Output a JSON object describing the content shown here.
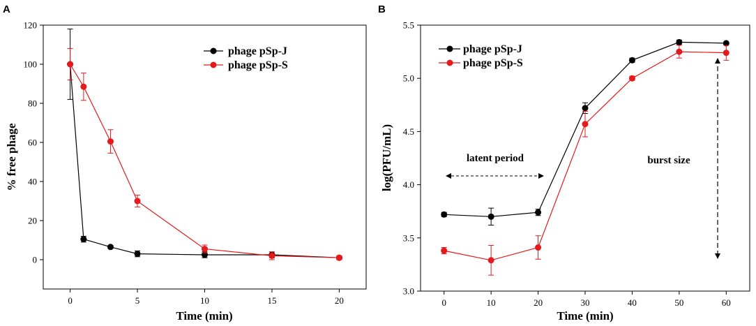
{
  "chart_data": [
    {
      "panel": "A",
      "type": "line",
      "title": "",
      "xlabel": "Time (min)",
      "ylabel": "% free phage",
      "xlim": [
        -2,
        22
      ],
      "ylim": [
        -15,
        120
      ],
      "xticks": [
        0,
        5,
        10,
        15,
        20
      ],
      "yticks": [
        0,
        20,
        40,
        60,
        80,
        100,
        120
      ],
      "grid": false,
      "legend_position": "top-right",
      "series": [
        {
          "name": "phage pSp-J",
          "color": "#000000",
          "x": [
            0,
            1,
            3,
            5,
            10,
            15,
            20
          ],
          "values": [
            100,
            10.5,
            6.5,
            3,
            2.5,
            2.5,
            1
          ],
          "errors": [
            18,
            1.5,
            0.8,
            1.5,
            1.5,
            1.5,
            1
          ]
        },
        {
          "name": "phage pSp-S",
          "color": "#e41a1c",
          "x": [
            0,
            1,
            3,
            5,
            10,
            15,
            20
          ],
          "values": [
            100,
            88.5,
            60.5,
            30,
            5.5,
            2,
            1
          ],
          "errors": [
            8,
            7,
            6,
            3,
            2,
            2,
            1
          ]
        }
      ]
    },
    {
      "panel": "B",
      "type": "line",
      "title": "",
      "xlabel": "Time (min)",
      "ylabel": "log(PFU/mL)",
      "xlim": [
        -5,
        65
      ],
      "ylim": [
        3.0,
        5.5
      ],
      "xticks": [
        0,
        10,
        20,
        30,
        40,
        50,
        60
      ],
      "yticks": [
        3.0,
        3.5,
        4.0,
        4.5,
        5.0,
        5.5
      ],
      "grid": false,
      "legend_position": "top-left",
      "annotations": {
        "latent_period": "latent period",
        "burst_size": "burst size"
      },
      "series": [
        {
          "name": "phage pSp-J",
          "color": "#000000",
          "x": [
            0,
            10,
            20,
            30,
            40,
            50,
            60
          ],
          "values": [
            3.72,
            3.7,
            3.74,
            4.72,
            5.17,
            5.34,
            5.33
          ],
          "errors": [
            0.02,
            0.08,
            0.03,
            0.05,
            0.02,
            0.02,
            0.01
          ]
        },
        {
          "name": "phage pSp-S",
          "color": "#e41a1c",
          "x": [
            0,
            10,
            20,
            30,
            40,
            50,
            60
          ],
          "values": [
            3.38,
            3.29,
            3.41,
            4.57,
            5.0,
            5.25,
            5.24
          ],
          "errors": [
            0.03,
            0.14,
            0.11,
            0.12,
            0.02,
            0.06,
            0.07
          ]
        }
      ]
    }
  ]
}
